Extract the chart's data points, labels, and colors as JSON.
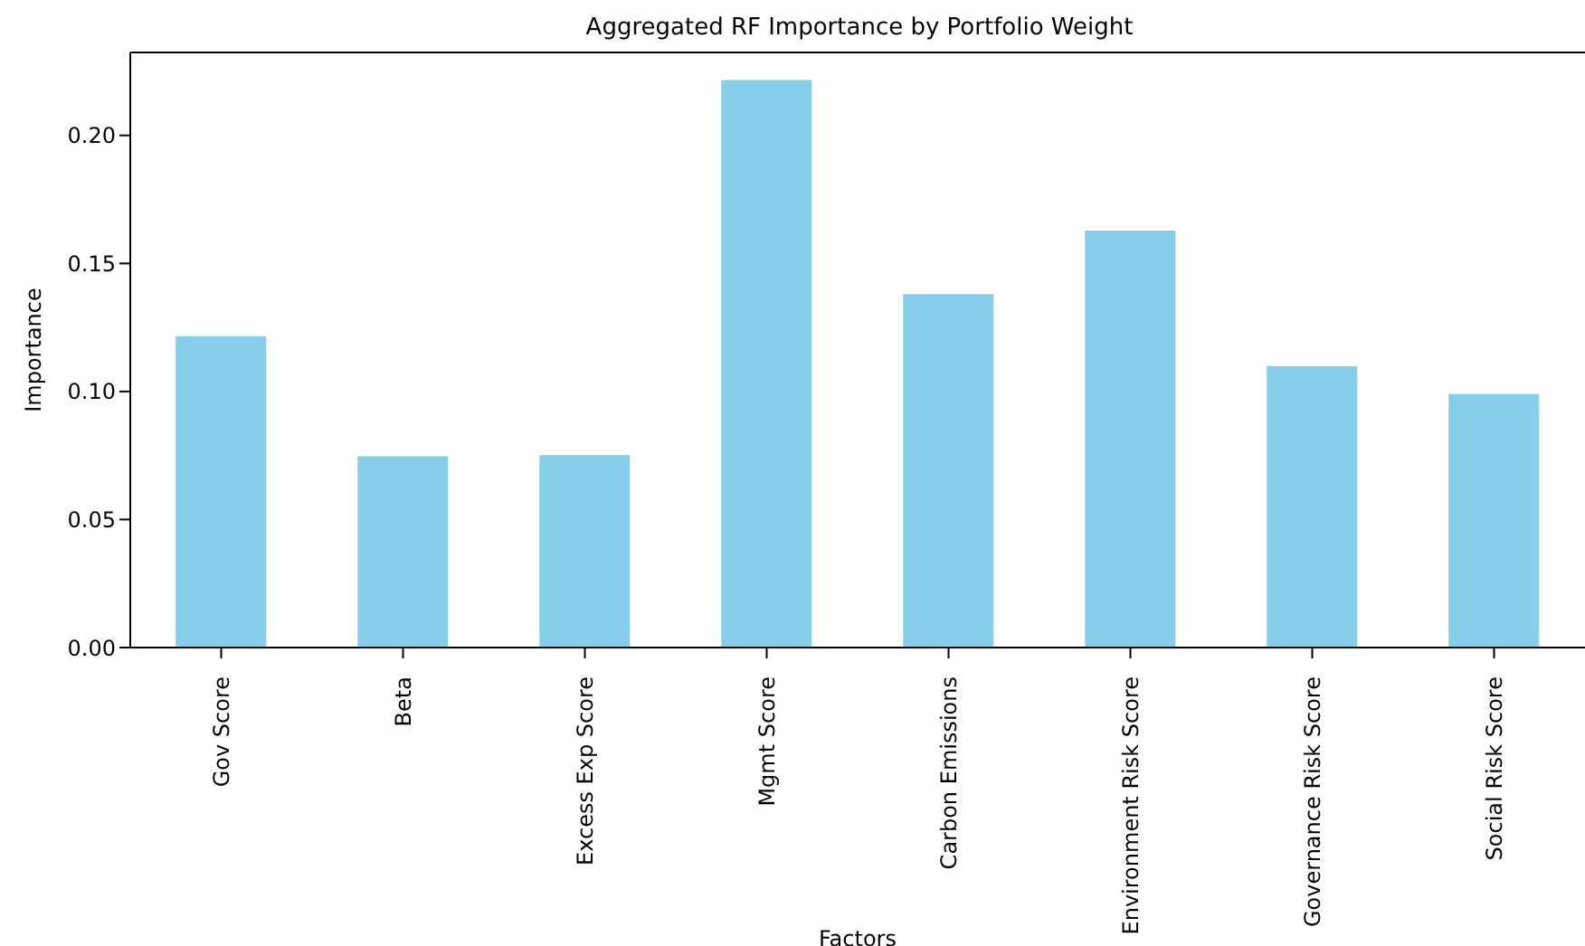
{
  "chart_data": {
    "type": "bar",
    "title": "Aggregated RF Importance by Portfolio Weight",
    "xlabel": "Factors",
    "ylabel": "Importance",
    "categories": [
      "Gov Score",
      "Beta",
      "Excess Exp Score",
      "Mgmt Score",
      "Carbon Emissions",
      "Environment Risk Score",
      "Governance Risk Score",
      "Social Risk Score"
    ],
    "values": [
      0.1216,
      0.0747,
      0.0751,
      0.2216,
      0.138,
      0.1628,
      0.1098,
      0.099
    ],
    "color": "#87ceeb",
    "ylim": [
      0,
      0.2324
    ],
    "yticks": [
      {
        "value": 0,
        "label": "0.00"
      },
      {
        "value": 0.05,
        "label": "0.05"
      },
      {
        "value": 0.1,
        "label": "0.10"
      },
      {
        "value": 0.15,
        "label": "0.15"
      },
      {
        "value": 0.2,
        "label": "0.20"
      }
    ],
    "grid": false,
    "legend": false
  }
}
